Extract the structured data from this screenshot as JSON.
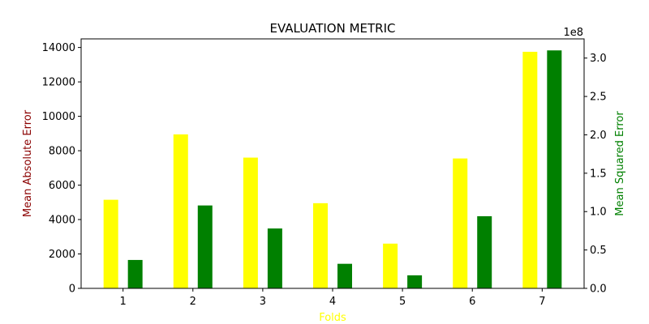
{
  "chart_data": {
    "type": "bar",
    "title": "EVALUATION METRIC",
    "xlabel": "Folds",
    "categories": [
      "1",
      "2",
      "3",
      "4",
      "5",
      "6",
      "7"
    ],
    "y_left": {
      "label": "Mean Absolute Error",
      "ylim": [
        0,
        14500
      ],
      "ticks": [
        0,
        2000,
        4000,
        6000,
        8000,
        10000,
        12000,
        14000
      ],
      "tick_labels": [
        "0",
        "2000",
        "4000",
        "6000",
        "8000",
        "10000",
        "12000",
        "14000"
      ]
    },
    "y_right": {
      "label": "Mean Squared Error",
      "ylim": [
        0,
        3.25
      ],
      "scale_label": "1e8",
      "ticks": [
        0,
        0.5,
        1.0,
        1.5,
        2.0,
        2.5,
        3.0
      ],
      "tick_labels": [
        "0.0",
        "0.5",
        "1.0",
        "1.5",
        "2.0",
        "2.5",
        "3.0"
      ]
    },
    "series": [
      {
        "name": "Mean Absolute Error",
        "axis": "left",
        "color": "#ffff00",
        "values": [
          5150,
          8950,
          7600,
          4950,
          2600,
          7550,
          13750
        ]
      },
      {
        "name": "Mean Squared Error",
        "axis": "right",
        "color": "#008000",
        "values": [
          0.37,
          1.08,
          0.78,
          0.32,
          0.17,
          0.94,
          3.1
        ]
      }
    ],
    "colors": {
      "xlabel": "#ffff00",
      "left_label": "#8b0000",
      "right_label": "#008000",
      "axis": "#000000"
    },
    "grid": false
  }
}
